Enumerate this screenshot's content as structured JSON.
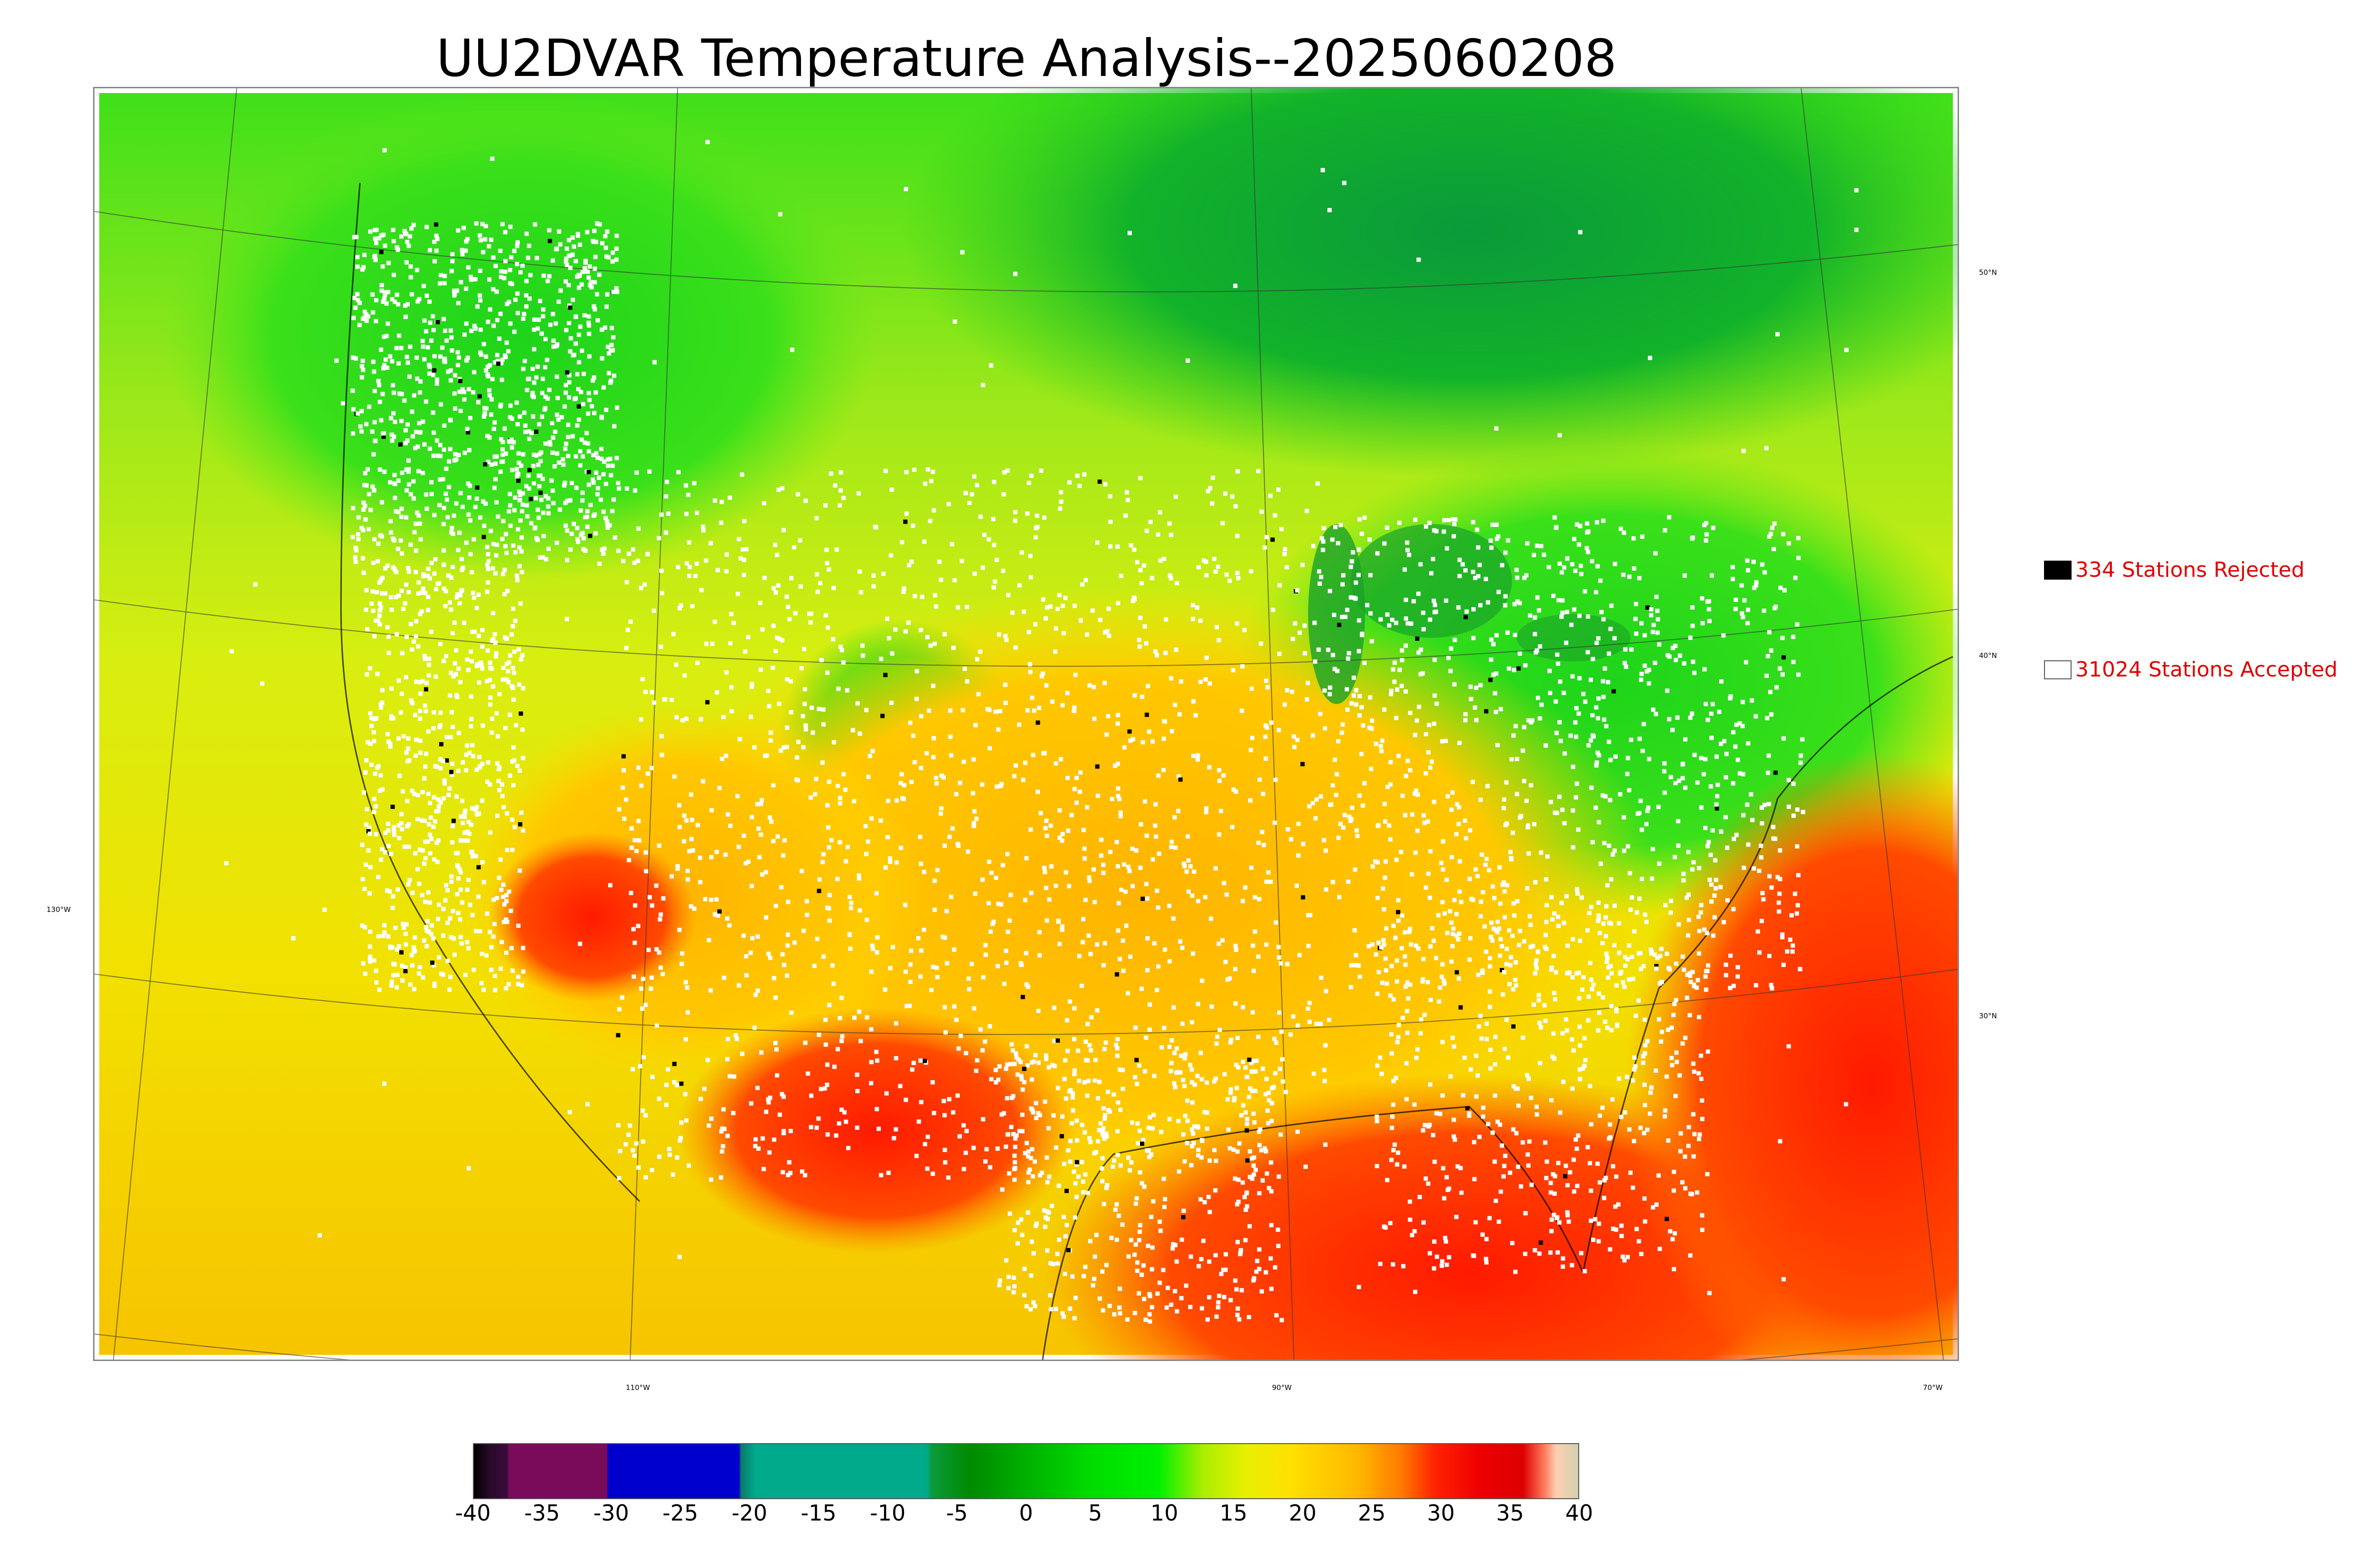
{
  "title": "UU2DVAR Temperature Analysis--2025060208",
  "map": {
    "lat_labels": [
      "50°N",
      "40°N",
      "30°N",
      "130°W"
    ],
    "lon_labels": [
      "110°W",
      "90°W",
      "70°W"
    ]
  },
  "legend": {
    "rejected": {
      "label": "334 Stations Rejected",
      "color": "#000000"
    },
    "accepted": {
      "label": "31024 Stations Accepted",
      "color": "#ffffff"
    }
  },
  "colorbar": {
    "ticks": [
      "-40",
      "-35",
      "-30",
      "-25",
      "-20",
      "-15",
      "-10",
      "-5",
      "0",
      "5",
      "10",
      "15",
      "20",
      "25",
      "30",
      "35",
      "40"
    ],
    "range": [
      -40,
      40
    ]
  },
  "colors": {
    "warm": "#ff2a00",
    "mild": "#f0e000",
    "cool": "#33e01a",
    "cold": "#0a9a3a",
    "label_red": "#e00000"
  }
}
